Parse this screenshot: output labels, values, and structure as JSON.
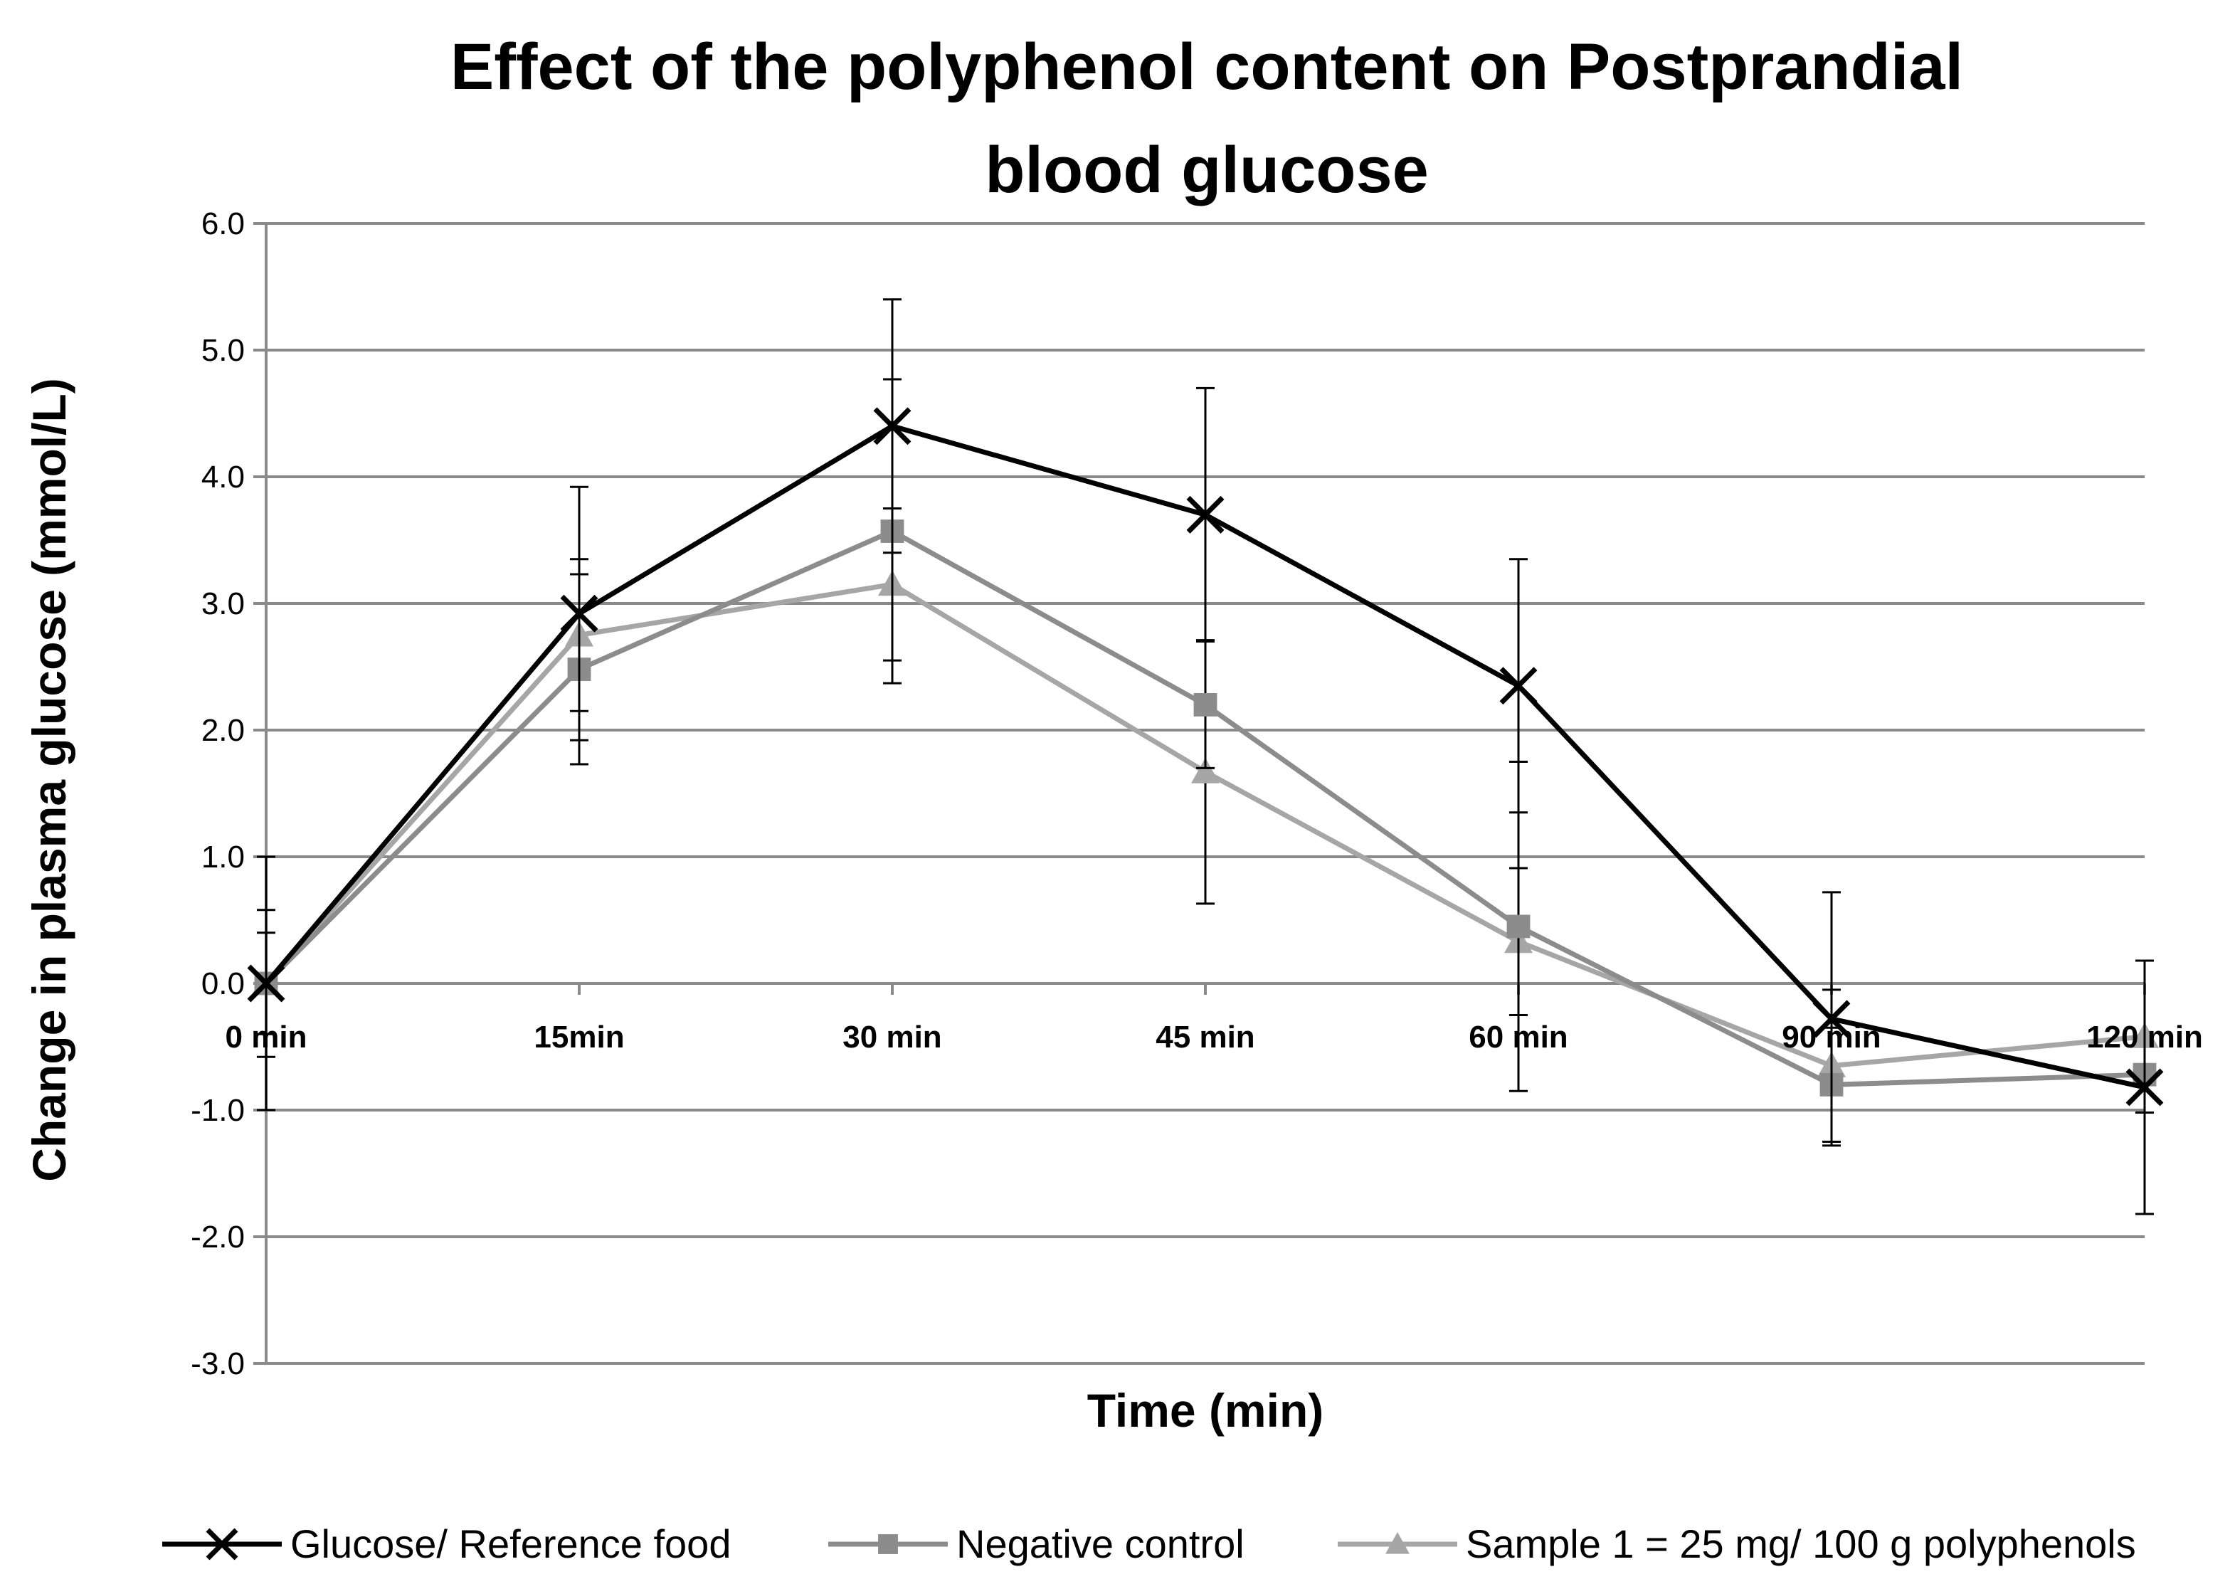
{
  "chart_data": {
    "type": "line",
    "title_lines": [
      "Effect of the polyphenol content on Postprandial",
      "blood glucose"
    ],
    "xlabel": "Time (min)",
    "ylabel": "Change in plasma glucose (mmol/L)",
    "categories": [
      "0 min",
      "15min",
      "30 min",
      "45 min",
      "60 min",
      "90 min",
      "120 min"
    ],
    "ylim": [
      -3.0,
      6.0
    ],
    "yticks": [
      "6.0",
      "5.0",
      "4.0",
      "3.0",
      "2.0",
      "1.0",
      "0.0",
      "-1.0",
      "-2.0",
      "-3.0"
    ],
    "ytick_values": [
      6,
      5,
      4,
      3,
      2,
      1,
      0,
      -1,
      -2,
      -3
    ],
    "grid": true,
    "legend_position": "bottom",
    "series": [
      {
        "name": "Glucose/ Reference food",
        "marker": "x",
        "color": "#000000",
        "values": [
          0.0,
          2.92,
          4.4,
          3.7,
          2.35,
          -0.28,
          -0.82
        ],
        "errors": [
          1.0,
          1.0,
          1.0,
          1.0,
          1.0,
          1.0,
          1.0
        ]
      },
      {
        "name": "Negative control",
        "marker": "square",
        "color": "#8c8c8c",
        "values": [
          0.0,
          2.48,
          3.57,
          2.2,
          0.45,
          -0.8,
          -0.72
        ],
        "errors": [
          0.58,
          0.75,
          1.2,
          0.5,
          1.3,
          0.45,
          0.0
        ]
      },
      {
        "name": "Sample 1 = 25 mg/ 100 g polyphenols",
        "marker": "triangle",
        "color": "#a6a6a6",
        "values": [
          0.0,
          2.75,
          3.15,
          1.67,
          0.33,
          -0.65,
          -0.42
        ],
        "errors": [
          0.4,
          0.6,
          0.6,
          1.04,
          0.58,
          0.6,
          0.6
        ]
      }
    ]
  }
}
